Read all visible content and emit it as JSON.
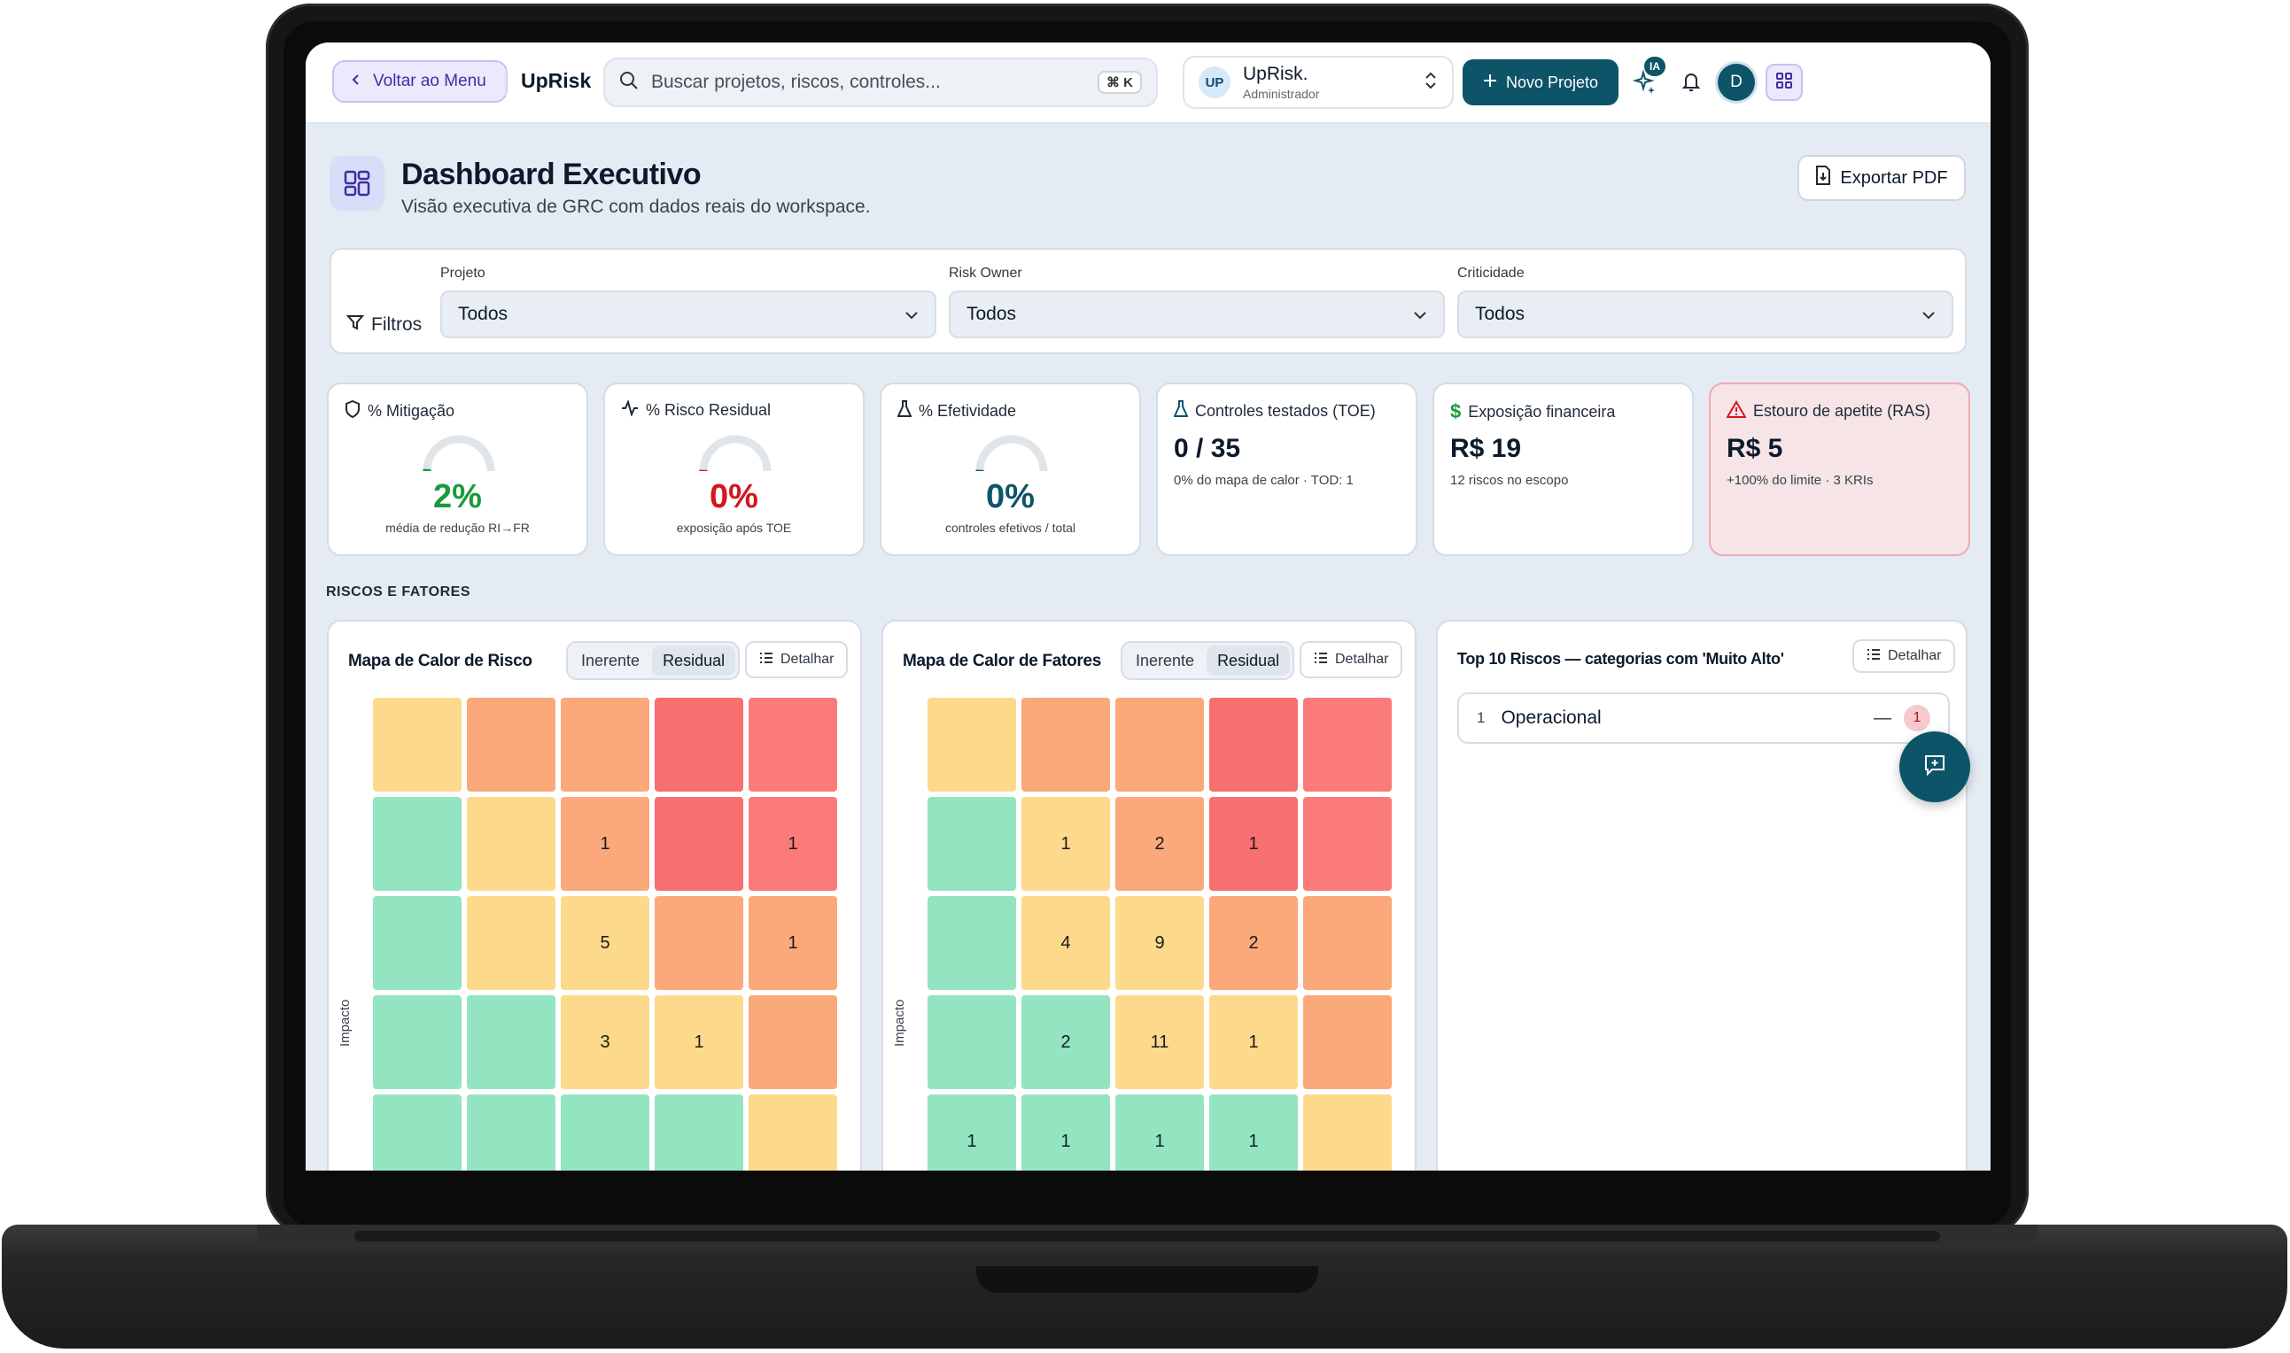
{
  "topbar": {
    "back_label": "Voltar ao Menu",
    "brand": "UpRisk",
    "search_placeholder": "Buscar projetos, riscos, controles...",
    "search_shortcut": "⌘ K",
    "workspace": {
      "initials": "UP",
      "name": "UpRisk.",
      "role": "Administrador"
    },
    "new_project_label": "Novo Projeto",
    "ia_badge": "IA",
    "user_initial": "D"
  },
  "header": {
    "title": "Dashboard Executivo",
    "subtitle": "Visão executiva de GRC com dados reais do workspace.",
    "export_label": "Exportar PDF"
  },
  "filters": {
    "label": "Filtros",
    "items": [
      {
        "label": "Projeto",
        "value": "Todos"
      },
      {
        "label": "Risk Owner",
        "value": "Todos"
      },
      {
        "label": "Criticidade",
        "value": "Todos"
      }
    ]
  },
  "kpis": {
    "mitigation": {
      "title": "% Mitigação",
      "value": "2%",
      "fraction": 0.02,
      "caption": "média de redução RI→FR",
      "color": "#1a9a3c"
    },
    "residual": {
      "title": "% Risco Residual",
      "value": "0%",
      "fraction": 0,
      "caption": "exposição após TOE",
      "color": "#d4151f"
    },
    "effectiveness": {
      "title": "% Efetividade",
      "value": "0%",
      "fraction": 0,
      "caption": "controles efetivos / total",
      "color": "#0d5469"
    },
    "tested": {
      "title": "Controles testados (TOE)",
      "value": "0 / 35",
      "desc": "0% do mapa de calor · TOD: 1"
    },
    "exposure": {
      "title": "Exposição financeira",
      "value": "R$ 19",
      "desc": "12 riscos no escopo"
    },
    "appetite": {
      "title": "Estouro de apetite (RAS)",
      "value": "R$ 5",
      "desc": "+100% do limite · 3 KRIs"
    }
  },
  "section_title": "RISCOS E FATORES",
  "risk_map": {
    "title": "Mapa de Calor de Risco",
    "seg_inherent": "Inerente",
    "seg_residual": "Residual",
    "detail_label": "Detalhar",
    "axis_label": "Impacto",
    "rows": [
      [
        "",
        "",
        "",
        "",
        ""
      ],
      [
        "",
        "",
        "1",
        "",
        "1"
      ],
      [
        "",
        "",
        "5",
        "",
        "1"
      ],
      [
        "",
        "",
        "3",
        "1",
        ""
      ],
      [
        "",
        "",
        "",
        "",
        ""
      ]
    ]
  },
  "factor_map": {
    "title": "Mapa de Calor de Fatores",
    "seg_inherent": "Inerente",
    "seg_residual": "Residual",
    "detail_label": "Detalhar",
    "axis_label": "Impacto",
    "rows": [
      [
        "",
        "",
        "",
        "",
        ""
      ],
      [
        "",
        "1",
        "2",
        "1",
        ""
      ],
      [
        "",
        "4",
        "9",
        "2",
        ""
      ],
      [
        "",
        "2",
        "11",
        "1",
        ""
      ],
      [
        "1",
        "1",
        "1",
        "1",
        ""
      ]
    ]
  },
  "heat_colors": [
    [
      "#fdd98b",
      "#fba87a",
      "#fba87a",
      "#f86f6f",
      "#fb7b7b"
    ],
    [
      "#93e5c2",
      "#fdd98b",
      "#fba87a",
      "#f86f6f",
      "#fb7b7b"
    ],
    [
      "#93e5c2",
      "#fdd98b",
      "#fdd98b",
      "#fba87a",
      "#fba87a"
    ],
    [
      "#93e5c2",
      "#93e5c2",
      "#fdd98b",
      "#fdd98b",
      "#fba87a"
    ],
    [
      "#93e5c2",
      "#93e5c2",
      "#93e5c2",
      "#93e5c2",
      "#fdd98b"
    ]
  ],
  "top10": {
    "title": "Top 10 Riscos — categorias com 'Muito Alto'",
    "detail_label": "Detalhar",
    "items": [
      {
        "rank": "1",
        "name": "Operacional",
        "dash": "—",
        "count": "1"
      }
    ]
  }
}
